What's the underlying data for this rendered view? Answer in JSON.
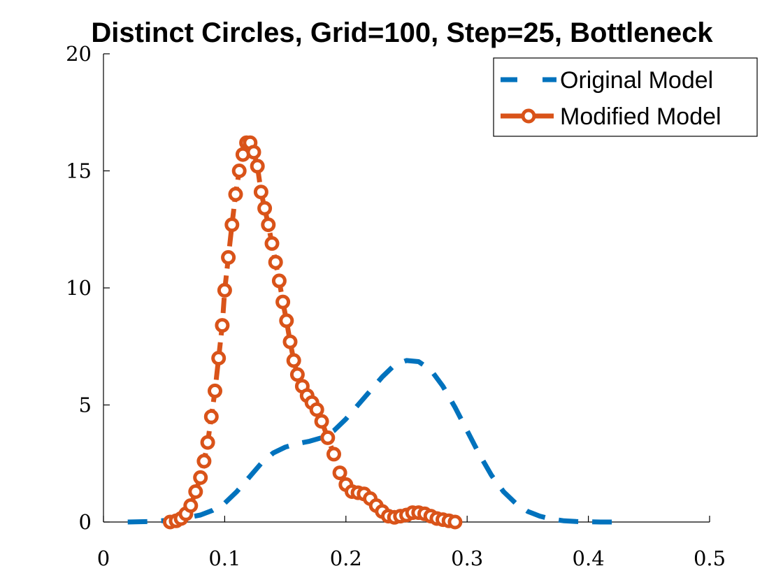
{
  "chart_data": {
    "type": "line",
    "title": "Distinct Circles, Grid=100, Step=25, Bottleneck",
    "xlabel": "",
    "ylabel": "",
    "xlim": [
      0,
      0.5
    ],
    "ylim": [
      0,
      20
    ],
    "x_ticks": [
      0,
      0.1,
      0.2,
      0.3,
      0.4,
      0.5
    ],
    "x_tick_labels": [
      "0",
      "0.1",
      "0.2",
      "0.3",
      "0.4",
      "0.5"
    ],
    "y_ticks": [
      0,
      5,
      10,
      15,
      20
    ],
    "y_tick_labels": [
      "0",
      "5",
      "10",
      "15",
      "20"
    ],
    "grid": false,
    "legend_position": "top-right",
    "series": [
      {
        "name": "Original Model",
        "color": "#0072bd",
        "line_style": "dashed",
        "marker": "none",
        "x": [
          0.02,
          0.04,
          0.06,
          0.08,
          0.09,
          0.1,
          0.11,
          0.12,
          0.13,
          0.14,
          0.15,
          0.16,
          0.17,
          0.18,
          0.19,
          0.2,
          0.21,
          0.22,
          0.23,
          0.24,
          0.25,
          0.26,
          0.27,
          0.28,
          0.29,
          0.3,
          0.31,
          0.32,
          0.33,
          0.34,
          0.35,
          0.36,
          0.37,
          0.38,
          0.39,
          0.4,
          0.41,
          0.425
        ],
        "y": [
          0.0,
          0.02,
          0.1,
          0.3,
          0.5,
          0.8,
          1.3,
          1.9,
          2.5,
          2.95,
          3.2,
          3.35,
          3.45,
          3.6,
          3.9,
          4.4,
          5.0,
          5.6,
          6.2,
          6.7,
          6.9,
          6.85,
          6.5,
          5.8,
          4.9,
          3.9,
          2.9,
          2.0,
          1.3,
          0.8,
          0.45,
          0.25,
          0.12,
          0.05,
          0.02,
          0.01,
          0.0,
          0.0
        ]
      },
      {
        "name": "Modified Model",
        "color": "#d95319",
        "line_style": "dashed",
        "marker": "circle",
        "x": [
          0.055,
          0.06,
          0.064,
          0.068,
          0.072,
          0.076,
          0.08,
          0.083,
          0.086,
          0.089,
          0.092,
          0.095,
          0.098,
          0.1,
          0.103,
          0.106,
          0.109,
          0.112,
          0.115,
          0.118,
          0.121,
          0.124,
          0.127,
          0.13,
          0.133,
          0.136,
          0.139,
          0.142,
          0.145,
          0.148,
          0.151,
          0.154,
          0.157,
          0.16,
          0.164,
          0.168,
          0.172,
          0.176,
          0.18,
          0.185,
          0.19,
          0.195,
          0.2,
          0.205,
          0.21,
          0.215,
          0.22,
          0.225,
          0.23,
          0.235,
          0.24,
          0.245,
          0.25,
          0.255,
          0.26,
          0.265,
          0.27,
          0.275,
          0.28,
          0.285,
          0.29
        ],
        "y": [
          0.0,
          0.05,
          0.15,
          0.35,
          0.7,
          1.3,
          1.9,
          2.6,
          3.4,
          4.5,
          5.6,
          7.0,
          8.4,
          9.9,
          11.3,
          12.7,
          14.0,
          15.0,
          15.7,
          16.2,
          16.2,
          15.8,
          15.2,
          14.1,
          13.4,
          12.7,
          11.9,
          11.1,
          10.3,
          9.4,
          8.6,
          7.7,
          6.9,
          6.3,
          5.8,
          5.4,
          5.1,
          4.8,
          4.3,
          3.6,
          2.9,
          2.1,
          1.6,
          1.3,
          1.25,
          1.2,
          1.0,
          0.7,
          0.45,
          0.25,
          0.2,
          0.25,
          0.3,
          0.4,
          0.4,
          0.35,
          0.25,
          0.15,
          0.1,
          0.05,
          0.0
        ]
      }
    ]
  }
}
